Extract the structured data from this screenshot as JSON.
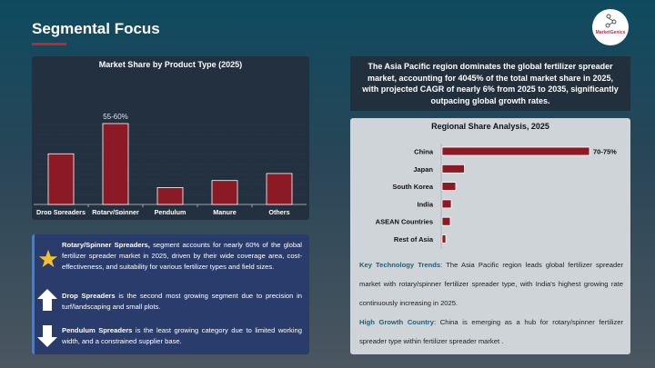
{
  "header": {
    "title": "Segmental Focus",
    "logo_text": "MarketGenics"
  },
  "colors": {
    "bar": "#8b1a24",
    "accent": "#c0272d",
    "panel_border": "#3f7fd8"
  },
  "chart_data": [
    {
      "type": "bar",
      "title": "Market Share by Product Type (2025)",
      "categories": [
        "Drop Spreaders",
        "Rotary/Spinner Spreaders",
        "Pendulum Spreaders",
        "Manure Spreaders",
        "Others"
      ],
      "category_lines": [
        [
          "Drop Spreaders"
        ],
        [
          "Rotary/Spinner",
          "Spreaders"
        ],
        [
          "Pendulum",
          "Spreaders"
        ],
        [
          "Manure",
          "Spreaders"
        ],
        [
          "Others"
        ]
      ],
      "values": [
        36,
        57.5,
        12,
        17,
        22
      ],
      "data_labels": [
        "",
        "55-60%",
        "",
        "",
        ""
      ],
      "grid": true
    },
    {
      "type": "bar",
      "orientation": "horizontal",
      "title": "Regional Share Analysis, 2025",
      "categories": [
        "China",
        "Japan",
        "South Korea",
        "India",
        "ASEAN Countries",
        "Rest of Asia"
      ],
      "values": [
        72.5,
        11,
        6.7,
        4.5,
        4,
        1.8
      ],
      "data_labels": [
        "70-75%",
        "",
        "",
        "",
        "",
        ""
      ],
      "grid": false
    }
  ],
  "highlights": [
    {
      "icon": "star-icon",
      "bold": "Rotary/Spinner Spreaders,",
      "text": " segment accounts for nearly 60% of the global fertilizer spreader market in 2025, driven by their wide coverage area, cost-effectiveness, and suitability for various fertilizer types and field sizes."
    },
    {
      "icon": "arrow-up-icon",
      "bold": "Drop Spreaders",
      "text": " is the second most growing segment due to precision in turf/landscaping and small plots."
    },
    {
      "icon": "arrow-down-icon",
      "bold": "Pendulum Spreaders",
      "text": " is the least growing category due to limited working width, and a constrained supplier base."
    }
  ],
  "summary": "The Asia Pacific region dominates the global fertilizer spreader market, accounting for 4045% of the total market share in 2025, with projected CAGR of nearly 6% from 2025 to 2035, significantly outpacing global growth rates.",
  "notes": [
    {
      "label": "Key Technology Trends",
      "text": ": The Asia Pacific region leads global fertilizer spreader market with rotary/spinner fertilizer spreader type, with India's highest growing rate continuously increasing in 2025."
    },
    {
      "label": "High Growth Country",
      "text": ": China is emerging as a hub for rotary/spinner fertilizer spreader type within fertilizer spreader market ."
    }
  ]
}
